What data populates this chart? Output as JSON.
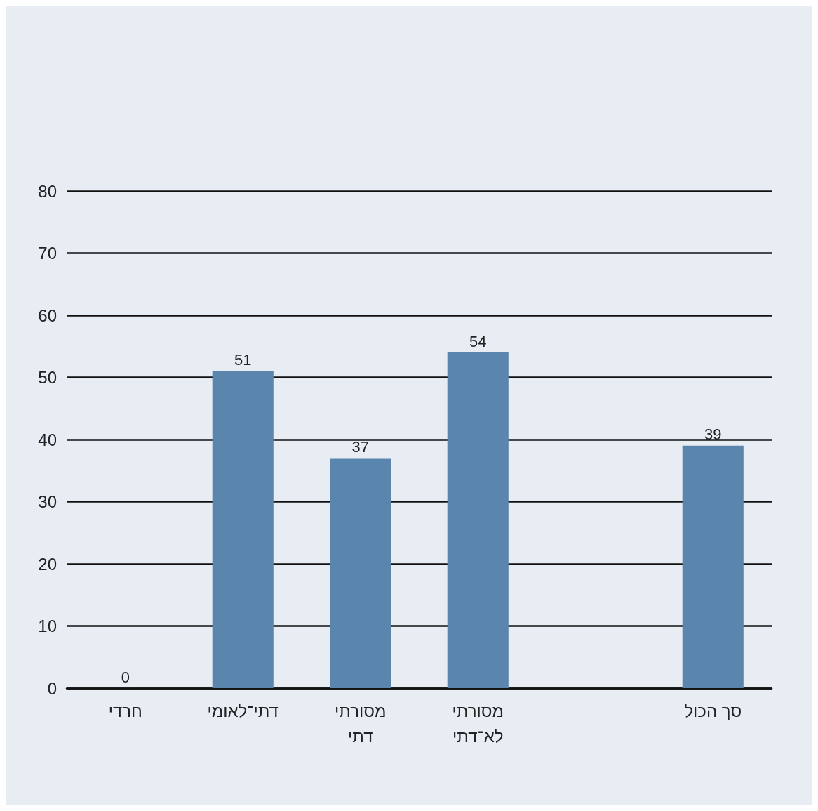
{
  "chart_data": {
    "type": "bar",
    "categories": [
      "חרדי",
      "דתי־לאומי",
      "מסורתי\nדתי",
      "מסורתי\nלא־דתי",
      null,
      "סך הכול"
    ],
    "values": [
      0,
      51,
      37,
      54,
      null,
      39
    ],
    "color": "#5a86ad",
    "ylim": [
      0,
      80
    ],
    "yticks": [
      0,
      10,
      20,
      30,
      40,
      50,
      60,
      70,
      80
    ],
    "grid": "y",
    "data_labels": true
  }
}
